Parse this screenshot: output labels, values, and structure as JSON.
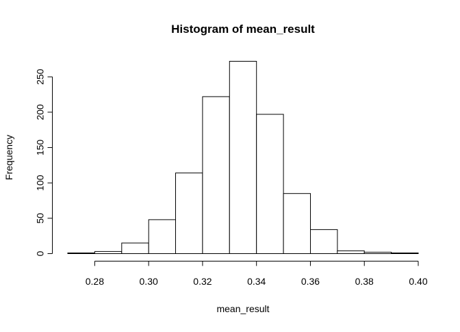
{
  "chart_data": {
    "type": "bar",
    "title": "Histogram of mean_result",
    "xlabel": "mean_result",
    "ylabel": "Frequency",
    "bins": [
      {
        "from": 0.27,
        "to": 0.28,
        "count": 1
      },
      {
        "from": 0.28,
        "to": 0.29,
        "count": 3
      },
      {
        "from": 0.29,
        "to": 0.3,
        "count": 15
      },
      {
        "from": 0.3,
        "to": 0.31,
        "count": 48
      },
      {
        "from": 0.31,
        "to": 0.32,
        "count": 114
      },
      {
        "from": 0.32,
        "to": 0.33,
        "count": 222
      },
      {
        "from": 0.33,
        "to": 0.34,
        "count": 272
      },
      {
        "from": 0.34,
        "to": 0.35,
        "count": 197
      },
      {
        "from": 0.35,
        "to": 0.36,
        "count": 85
      },
      {
        "from": 0.36,
        "to": 0.37,
        "count": 34
      },
      {
        "from": 0.37,
        "to": 0.38,
        "count": 4
      },
      {
        "from": 0.38,
        "to": 0.39,
        "count": 2
      },
      {
        "from": 0.39,
        "to": 0.4,
        "count": 1
      }
    ],
    "xlim": [
      0.27,
      0.4
    ],
    "ylim": [
      0,
      280
    ],
    "x_ticks": [
      "0.28",
      "0.30",
      "0.32",
      "0.34",
      "0.36",
      "0.38",
      "0.40"
    ],
    "y_ticks": [
      "0",
      "50",
      "100",
      "150",
      "200",
      "250"
    ],
    "grid": false,
    "bar_fill": "#ffffff",
    "bar_stroke": "#000000"
  }
}
